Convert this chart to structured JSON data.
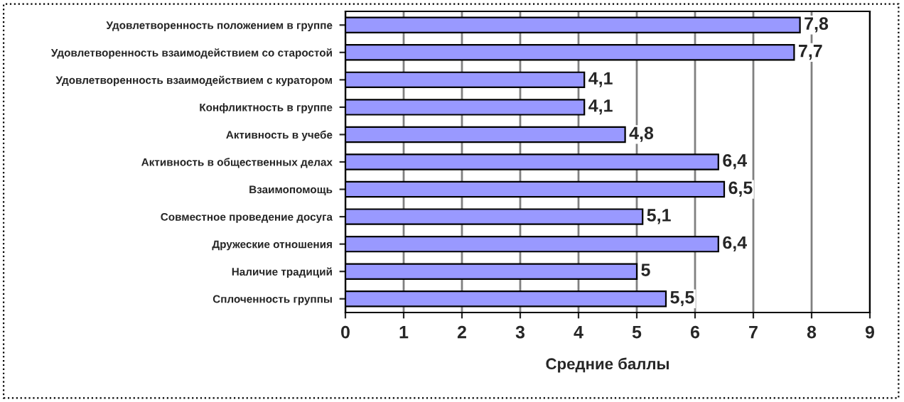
{
  "chart_data": {
    "type": "bar",
    "orientation": "horizontal",
    "xlabel": "Средние баллы",
    "categories": [
      "Удовлетворенность положением в группе",
      "Удовлетворенность взаимодействием со старостой",
      "Удовлетворенность взаимодействием с куратором",
      "Конфликтность в группе",
      "Активность в учебе",
      "Активность в общественных делах",
      "Взаимопомощь",
      "Совместное проведение досуга",
      "Дружеские отношения",
      "Наличие традиций",
      "Сплоченность группы"
    ],
    "values": [
      7.8,
      7.7,
      4.1,
      4.1,
      4.8,
      6.4,
      6.5,
      5.1,
      6.4,
      5,
      5.5
    ],
    "value_labels": [
      "7,8",
      "7,7",
      "4,1",
      "4,1",
      "4,8",
      "6,4",
      "6,5",
      "5,1",
      "6,4",
      "5",
      "5,5"
    ],
    "color": "#9999ff",
    "xlim": [
      0,
      9
    ],
    "xticks": [
      0,
      1,
      2,
      3,
      4,
      5,
      6,
      7,
      8,
      9
    ],
    "grid": "x",
    "legend": false
  }
}
